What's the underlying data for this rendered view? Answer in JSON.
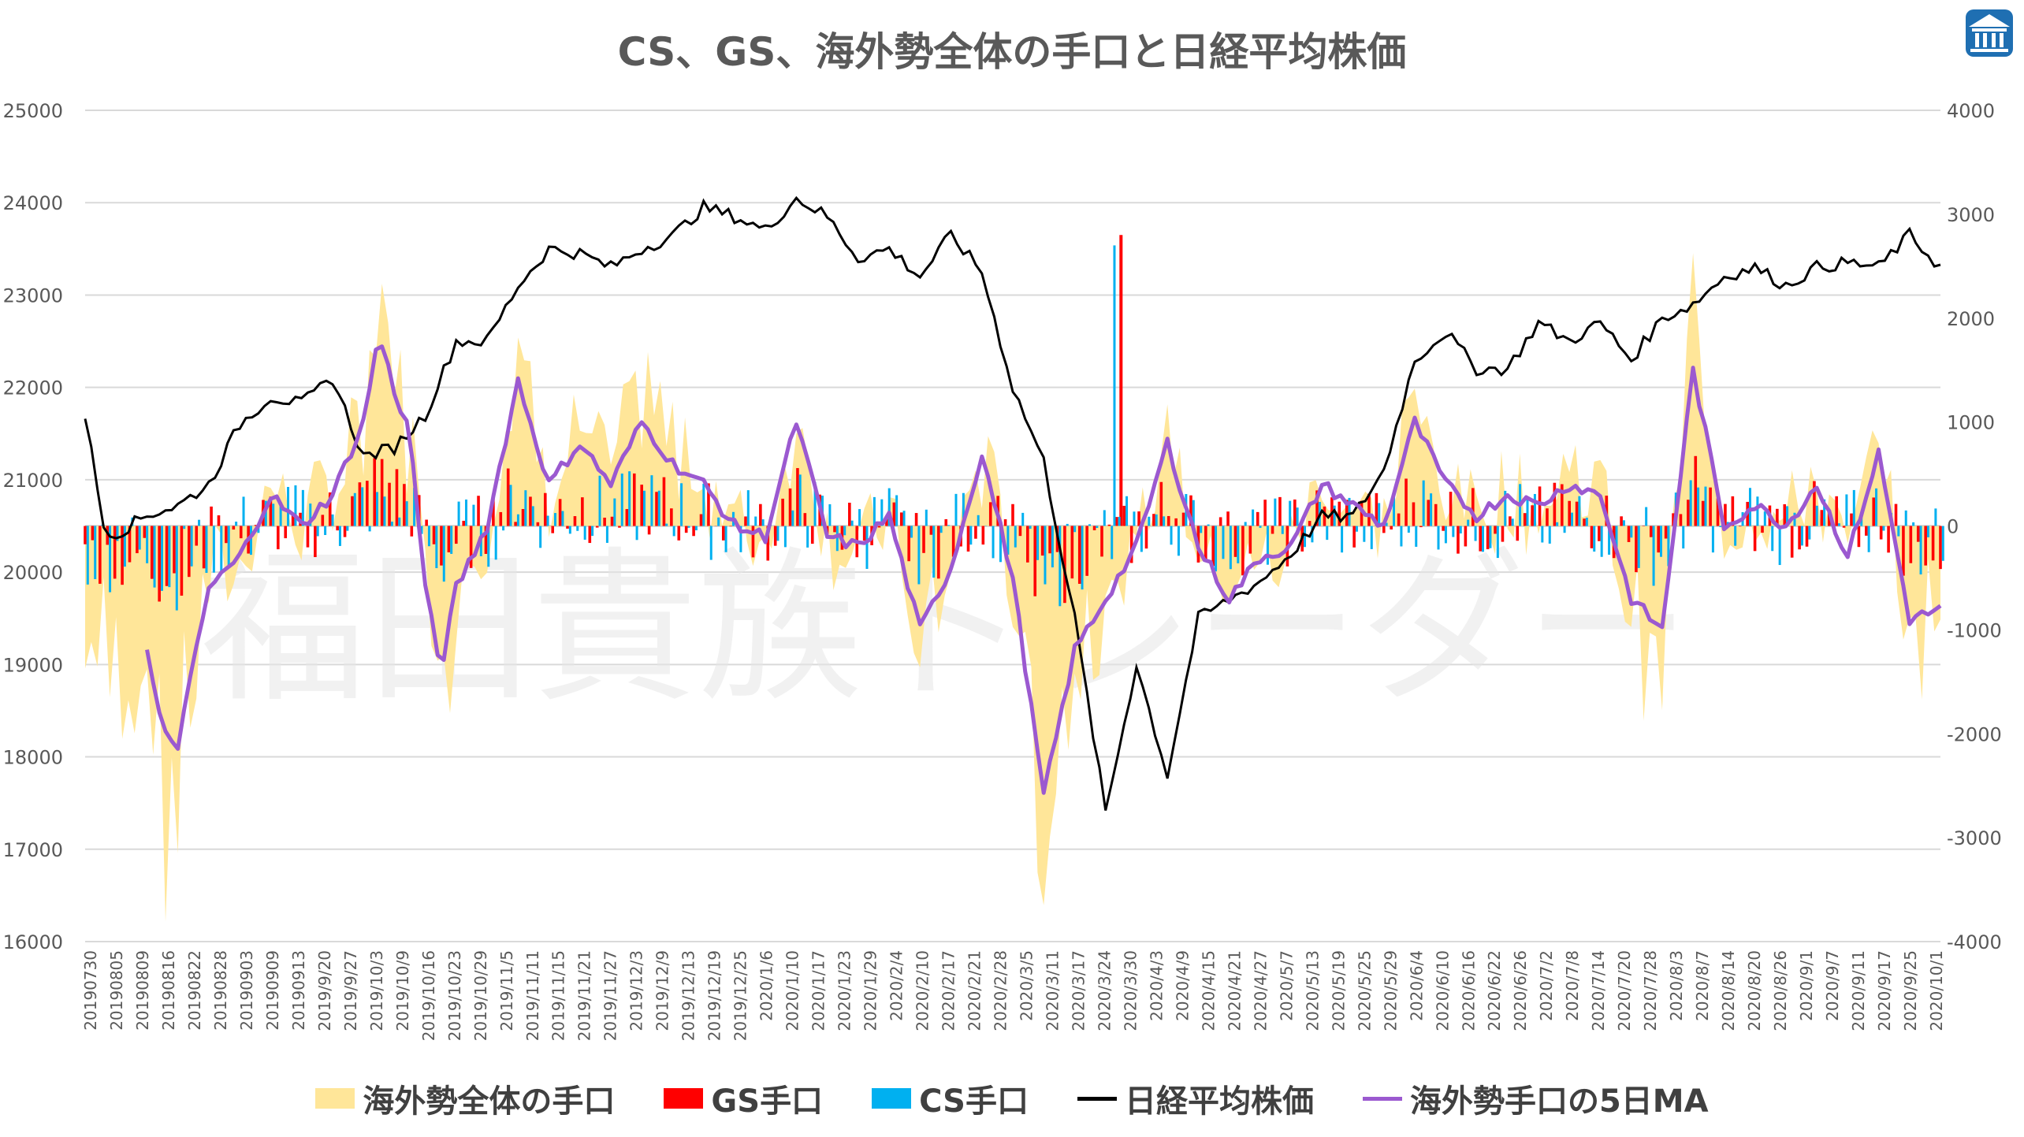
{
  "chart_data": {
    "type": "bar",
    "title": "CS、GS、海外勢全体の手口と日経平均株価",
    "left_axis": {
      "ylim": [
        16000,
        25000
      ],
      "ticks": [
        "16000",
        "17000",
        "18000",
        "19000",
        "20000",
        "21000",
        "22000",
        "23000",
        "24000",
        "25000"
      ]
    },
    "right_axis": {
      "ylim": [
        -4000,
        4000
      ],
      "ticks": [
        "-4000",
        "-3000",
        "-2000",
        "-1000",
        "0",
        "1000",
        "2000",
        "3000",
        "4000"
      ]
    },
    "x_tick_labels": [
      "20190730",
      "20190805",
      "20190809",
      "20190816",
      "20190822",
      "20190828",
      "20190903",
      "20190909",
      "20190913",
      "2019/9/20",
      "2019/9/27",
      "2019/10/3",
      "2019/10/9",
      "2019/10/16",
      "2019/10/23",
      "2019/10/29",
      "2019/11/5",
      "2019/11/11",
      "2019/11/15",
      "2019/11/21",
      "2019/11/27",
      "2019/12/3",
      "2019/12/9",
      "2019/12/13",
      "2019/12/19",
      "2019/12/25",
      "2020/1/6",
      "2020/1/10",
      "2020/1/17",
      "2020/1/23",
      "2020/1/29",
      "2020/2/4",
      "2020/2/10",
      "2020/2/17",
      "2020/2/21",
      "2020/2/28",
      "2020/3/5",
      "2020/3/11",
      "2020/3/17",
      "2020/3/24",
      "2020/3/30",
      "2020/4/3",
      "2020/4/9",
      "2020/4/15",
      "2020/4/21",
      "2020/4/27",
      "2020/5/7",
      "2020/5/13",
      "2020/5/19",
      "2020/5/25",
      "2020/5/29",
      "2020/6/4",
      "2020/6/10",
      "2020/6/16",
      "2020/6/22",
      "2020/6/26",
      "2020/7/2",
      "2020/7/8",
      "2020/7/14",
      "2020/7/20",
      "2020/7/28",
      "2020/8/3",
      "2020/8/7",
      "2020/8/14",
      "2020/8/20",
      "2020/8/26",
      "2020/9/1",
      "2020/9/7",
      "2020/9/11",
      "2020/9/17",
      "2020/9/25",
      "2020/10/1"
    ],
    "nikkei_keypoints": [
      [
        0,
        21710
      ],
      [
        6,
        20500
      ],
      [
        10,
        20410
      ],
      [
        20,
        20620
      ],
      [
        30,
        20720
      ],
      [
        40,
        20950
      ],
      [
        50,
        21600
      ],
      [
        60,
        21900
      ],
      [
        70,
        21820
      ],
      [
        80,
        22100
      ],
      [
        90,
        21250
      ],
      [
        100,
        21350
      ],
      [
        110,
        21700
      ],
      [
        120,
        22500
      ],
      [
        130,
        22500
      ],
      [
        140,
        23100
      ],
      [
        150,
        23500
      ],
      [
        160,
        23450
      ],
      [
        170,
        23300
      ],
      [
        180,
        23500
      ],
      [
        190,
        23640
      ],
      [
        200,
        23950
      ],
      [
        210,
        23850
      ],
      [
        220,
        23700
      ],
      [
        230,
        24050
      ],
      [
        240,
        23850
      ],
      [
        250,
        23400
      ],
      [
        260,
        23500
      ],
      [
        270,
        23200
      ],
      [
        280,
        23650
      ],
      [
        290,
        23250
      ],
      [
        300,
        22000
      ],
      [
        310,
        21200
      ],
      [
        320,
        19500
      ],
      [
        330,
        17400
      ],
      [
        340,
        19000
      ],
      [
        350,
        17800
      ],
      [
        360,
        19500
      ],
      [
        370,
        19700
      ],
      [
        380,
        19900
      ],
      [
        390,
        20200
      ],
      [
        400,
        20600
      ],
      [
        410,
        20600
      ],
      [
        420,
        21100
      ],
      [
        430,
        22300
      ],
      [
        440,
        22600
      ],
      [
        450,
        22200
      ],
      [
        460,
        22200
      ],
      [
        470,
        22700
      ],
      [
        480,
        22500
      ],
      [
        490,
        22700
      ],
      [
        500,
        22300
      ],
      [
        510,
        22750
      ],
      [
        520,
        22900
      ],
      [
        530,
        23200
      ],
      [
        540,
        23300
      ],
      [
        550,
        23100
      ],
      [
        560,
        23300
      ],
      [
        570,
        23350
      ],
      [
        580,
        23300
      ],
      [
        590,
        23650
      ],
      [
        600,
        23300
      ]
    ],
    "ma5_keypoints": [
      [
        20,
        -1200
      ],
      [
        25,
        -2000
      ],
      [
        30,
        -2100
      ],
      [
        40,
        -600
      ],
      [
        50,
        -300
      ],
      [
        60,
        300
      ],
      [
        70,
        0
      ],
      [
        80,
        300
      ],
      [
        90,
        1000
      ],
      [
        95,
        1850
      ],
      [
        100,
        1300
      ],
      [
        105,
        900
      ],
      [
        110,
        -600
      ],
      [
        115,
        -1400
      ],
      [
        120,
        -600
      ],
      [
        130,
        0
      ],
      [
        140,
        1400
      ],
      [
        150,
        400
      ],
      [
        160,
        800
      ],
      [
        170,
        400
      ],
      [
        180,
        1000
      ],
      [
        190,
        600
      ],
      [
        200,
        400
      ],
      [
        210,
        0
      ],
      [
        220,
        -100
      ],
      [
        230,
        1000
      ],
      [
        240,
        -100
      ],
      [
        250,
        -200
      ],
      [
        260,
        100
      ],
      [
        270,
        -1000
      ],
      [
        280,
        -400
      ],
      [
        290,
        700
      ],
      [
        300,
        -500
      ],
      [
        310,
        -2600
      ],
      [
        320,
        -1200
      ],
      [
        330,
        -700
      ],
      [
        340,
        -200
      ],
      [
        350,
        800
      ],
      [
        360,
        -200
      ],
      [
        370,
        -700
      ],
      [
        380,
        -300
      ],
      [
        390,
        -200
      ],
      [
        400,
        400
      ],
      [
        410,
        200
      ],
      [
        420,
        0
      ],
      [
        430,
        1000
      ],
      [
        440,
        400
      ],
      [
        450,
        100
      ],
      [
        460,
        300
      ],
      [
        470,
        200
      ],
      [
        480,
        400
      ],
      [
        490,
        300
      ],
      [
        500,
        -700
      ],
      [
        510,
        -1000
      ],
      [
        520,
        1500
      ],
      [
        530,
        0
      ],
      [
        540,
        200
      ],
      [
        550,
        0
      ],
      [
        560,
        400
      ],
      [
        570,
        -300
      ],
      [
        580,
        700
      ],
      [
        590,
        -900
      ],
      [
        600,
        -800
      ]
    ],
    "series_names": [
      "海外勢全体の手口",
      "GS手口",
      "CS手口",
      "日経平均株価",
      "海外勢手口の5日MA"
    ],
    "colors": {
      "overseas": "#FFE699",
      "gs": "#FF0000",
      "cs": "#00B0F0",
      "nikkei": "#000000",
      "ma5": "#9B59D0",
      "grid": "#D9D9D9"
    }
  },
  "legend": {
    "overseas": "海外勢全体の手口",
    "gs": "GS手口",
    "cs": "CS手口",
    "nikkei": "日経平均株価",
    "ma5": "海外勢手口の5日MA"
  },
  "watermark": "福田貴族トレーダー",
  "logo_icon": "temple-icon"
}
